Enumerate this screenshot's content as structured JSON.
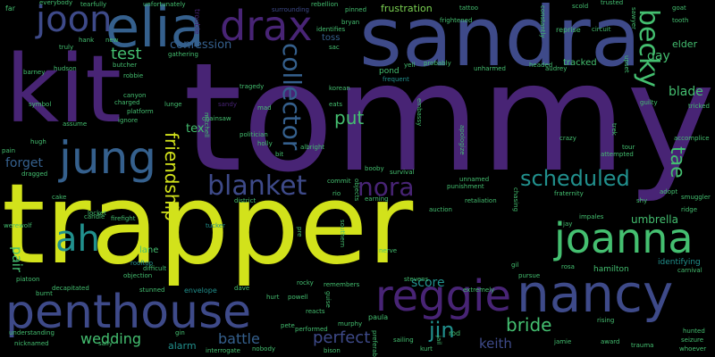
{
  "palette": {
    "background": "#000000",
    "yellow": "#D2E21B",
    "purple": "#482475",
    "indigo": "#3E4A89",
    "blue": "#35608D",
    "teal": "#21908D",
    "green": "#44BF70",
    "lime": "#7AD151"
  },
  "words": {
    "tommy": "tommy",
    "trapper": "trapper",
    "sandra": "sandra",
    "kit": "kit",
    "elia": "elia",
    "joon": "joon",
    "drax": "drax",
    "jung": "jung",
    "joanna": "joanna",
    "nancy": "nancy",
    "penthouse": "penthouse",
    "reggie": "reggie",
    "becky": "becky",
    "collector": "collector",
    "ah": "ah",
    "blanket": "blanket",
    "nora": "nora",
    "scheduled": "scheduled",
    "tae": "tae",
    "friendship": "friendship",
    "test": "test",
    "confession": "confession",
    "put": "put",
    "blade": "blade",
    "day": "day",
    "elder": "elder",
    "forget": "forget",
    "tex": "tex",
    "pair": "pair",
    "wedding": "wedding",
    "battle": "battle",
    "perfect": "perfect",
    "jin": "jin",
    "bride": "bride",
    "keith": "keith",
    "score": "score",
    "umbrella": "umbrella",
    "identifying": "identifying",
    "hamilton": "hamilton",
    "lane": "lane",
    "alarm": "alarm",
    "frustration": "frustration",
    "toss": "toss",
    "pond": "pond",
    "tracked": "tracked",
    "trouble": "trouble",
    "pinned": "pinned",
    "tattoo": "tattoo",
    "rebellion": "rebellion",
    "korean": "korean",
    "eats": "eats",
    "tucker": "tucker",
    "envelope": "envelope",
    "rooftop": "rooftop",
    "objection": "objection",
    "werewolf": "werewolf",
    "gathering": "gathering",
    "platform": "platform",
    "sandy": "sandy",
    "hurt": "hurt",
    "surrounding": "surrounding",
    "bryan": "bryan",
    "frequent": "frequent",
    "probably": "probably",
    "unharmed": "unharmed",
    "headed": "headed",
    "audrey": "audrey",
    "frightened": "frightened",
    "reprise": "reprise",
    "constantly": "constantly",
    "circuit": "circuit",
    "trusted": "trusted",
    "scold": "scold",
    "goat": "goat",
    "sawyer": "sawyer",
    "tooth": "tooth",
    "upset": "upset",
    "unfortunately": "unfortunately",
    "tearfully": "tearfully",
    "everybody": "everybody",
    "far": "far",
    "hank": "hank",
    "truly": "truly",
    "barney": "barney",
    "hudson": "hudson",
    "symbol": "symbol",
    "butcher": "butcher",
    "robbie": "robbie",
    "canyon": "canyon",
    "charged": "charged",
    "assume": "assume",
    "ignore": "ignore",
    "lunge": "lunge",
    "chainsaw": "chainsaw",
    "politician": "politician",
    "holly": "holly",
    "pain": "pain",
    "hugh": "hugh",
    "dragged": "dragged",
    "cake": "cake",
    "locket": "locket",
    "firefight": "firefight",
    "candle": "candle",
    "difficult": "difficult",
    "stunned": "stunned",
    "burnt": "burnt",
    "piatoon": "piatoon",
    "decapitated": "decapitated",
    "understanding": "understanding",
    "nicknamed": "nicknamed",
    "sally": "sally",
    "interrogate": "interrogate",
    "nobody": "nobody",
    "performed": "performed",
    "murphy": "murphy",
    "pete": "pete",
    "powell": "powell",
    "rocky": "rocky",
    "reacts": "reacts",
    "remembers": "remembers",
    "paula": "paula",
    "bison": "bison",
    "sailing": "sailing",
    "stevens": "stevens",
    "kurt": "kurt",
    "rod": "rod",
    "rising": "rising",
    "jamie": "jamie",
    "award": "award",
    "trauma": "trauma",
    "hunted": "hunted",
    "seizure": "seizure",
    "whoever": "whoever",
    "carnival": "carnival",
    "shy": "shy",
    "smuggler": "smuggler",
    "ridge": "ridge",
    "adopt": "adopt",
    "accomplice": "accomplice",
    "guilty": "guilty",
    "tricked": "tricked",
    "crazy": "crazy",
    "attempted": "attempted",
    "tour": "tour",
    "fraternity": "fraternity",
    "impales": "impales",
    "jay": "jay",
    "rosa": "rosa",
    "pursue": "pursue",
    "gil": "gil",
    "survival": "survival",
    "booby": "booby",
    "commit": "commit",
    "unnamed": "unnamed",
    "punishment": "punishment",
    "retaliation": "retaliation",
    "auction": "auction",
    "earning": "earning",
    "nerve": "nerve",
    "district": "district",
    "rio": "rio",
    "albright": "albright",
    "bit": "bit",
    "mad": "mad",
    "apologize": "apologize",
    "chasing": "chasing",
    "southern": "southern",
    "identifies": "identifies",
    "sac": "sac",
    "yell": "yell",
    "tragedy": "tragedy",
    "trek": "trek",
    "mitchell": "mitchell",
    "extremely": "extremely",
    "pre": "pre",
    "guise": "guise",
    "objects": "objects",
    "embassy": "embassy",
    "gin": "gin",
    "dave": "dave",
    "preferably": "preferably",
    "jail": "jail",
    "new": "new"
  }
}
